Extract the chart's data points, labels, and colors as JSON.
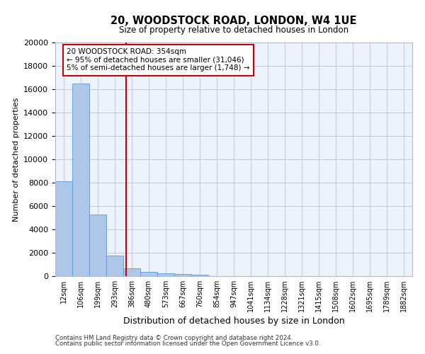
{
  "title_line1": "20, WOODSTOCK ROAD, LONDON, W4 1UE",
  "title_line2": "Size of property relative to detached houses in London",
  "xlabel": "Distribution of detached houses by size in London",
  "ylabel": "Number of detached properties",
  "categories": [
    "12sqm",
    "106sqm",
    "199sqm",
    "293sqm",
    "386sqm",
    "480sqm",
    "573sqm",
    "667sqm",
    "760sqm",
    "854sqm",
    "947sqm",
    "1041sqm",
    "1134sqm",
    "1228sqm",
    "1321sqm",
    "1415sqm",
    "1508sqm",
    "1602sqm",
    "1695sqm",
    "1789sqm",
    "1882sqm"
  ],
  "values": [
    8100,
    16500,
    5300,
    1750,
    650,
    350,
    270,
    200,
    150,
    0,
    0,
    0,
    0,
    0,
    0,
    0,
    0,
    0,
    0,
    0,
    0
  ],
  "bar_color": "#aec6e8",
  "bar_edge_color": "#5b9bd5",
  "vline_x": 3.65,
  "vline_color": "#cc0000",
  "annotation_text": "20 WOODSTOCK ROAD: 354sqm\n← 95% of detached houses are smaller (31,046)\n5% of semi-detached houses are larger (1,748) →",
  "annotation_box_color": "#ffffff",
  "annotation_box_edge": "#cc0000",
  "ylim": [
    0,
    20000
  ],
  "yticks": [
    0,
    2000,
    4000,
    6000,
    8000,
    10000,
    12000,
    14000,
    16000,
    18000,
    20000
  ],
  "background_color": "#eef2fb",
  "footer_line1": "Contains HM Land Registry data © Crown copyright and database right 2024.",
  "footer_line2": "Contains public sector information licensed under the Open Government Licence v3.0."
}
